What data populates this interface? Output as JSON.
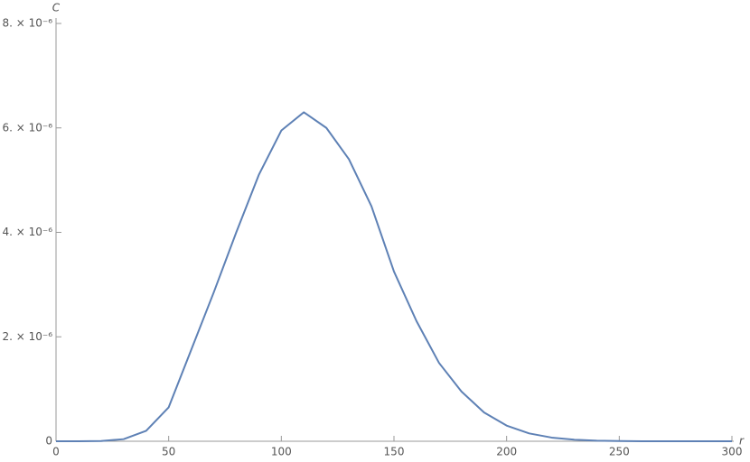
{
  "chart_data": {
    "type": "line",
    "x_label": "r",
    "y_label": "C",
    "x": [
      0,
      10,
      20,
      30,
      40,
      50,
      60,
      70,
      80,
      90,
      100,
      110,
      120,
      130,
      140,
      150,
      160,
      170,
      180,
      190,
      200,
      210,
      220,
      230,
      240,
      250,
      260,
      270,
      280,
      290,
      300
    ],
    "series": [
      {
        "color": "#5e81b5",
        "values": [
          0,
          0,
          5e-09,
          4e-08,
          2e-07,
          6.5e-07,
          1.75e-06,
          2.85e-06,
          4e-06,
          5.1e-06,
          5.95e-06,
          6.3e-06,
          6e-06,
          5.4e-06,
          4.5e-06,
          3.25e-06,
          2.3e-06,
          1.5e-06,
          9.5e-07,
          5.5e-07,
          3e-07,
          1.5e-07,
          7e-08,
          3e-08,
          1e-08,
          4e-09,
          0,
          0,
          0,
          0,
          0
        ]
      }
    ],
    "xlim": [
      0,
      300
    ],
    "xticks": [
      0,
      50,
      100,
      150,
      200,
      250,
      300
    ],
    "ylim": [
      0,
      8e-06
    ],
    "yticks": [
      0,
      {
        "value": 2e-06,
        "label": "2. × 10⁻⁶"
      },
      {
        "value": 4e-06,
        "label": "4. × 10⁻⁶"
      },
      {
        "value": 6e-06,
        "label": "6. × 10⁻⁶"
      },
      {
        "value": 8e-06,
        "label": "8. × 10⁻⁶"
      }
    ]
  }
}
